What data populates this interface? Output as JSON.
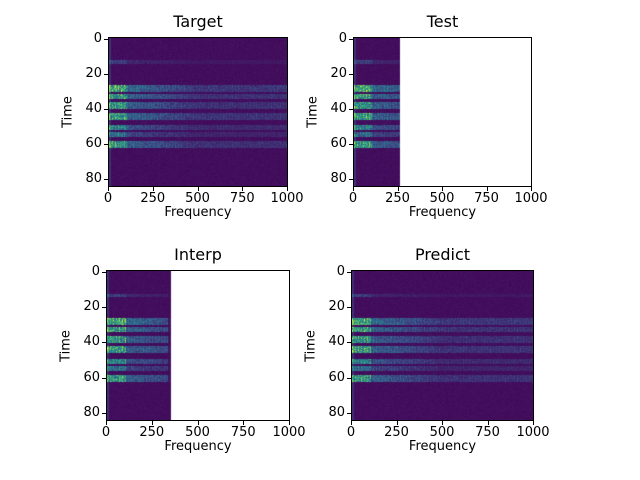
{
  "chart_data": [
    {
      "type": "heatmap",
      "title": "Target",
      "xlabel": "Frequency",
      "ylabel": "Time",
      "xlim": [
        0,
        1000
      ],
      "ylim": [
        84,
        0
      ],
      "xticks": [
        "0",
        "250",
        "500",
        "750",
        "1000"
      ],
      "yticks": [
        "0",
        "20",
        "40",
        "60",
        "80"
      ],
      "content_freq_max": 1000
    },
    {
      "type": "heatmap",
      "title": "Test",
      "xlabel": "Frequency",
      "ylabel": "Time",
      "xlim": [
        0,
        1000
      ],
      "ylim": [
        84,
        0
      ],
      "xticks": [
        "0",
        "250",
        "500",
        "750",
        "1000"
      ],
      "yticks": [
        "0",
        "20",
        "40",
        "60",
        "80"
      ],
      "content_freq_max": 256
    },
    {
      "type": "heatmap",
      "title": "Interp",
      "xlabel": "Frequency",
      "ylabel": "Time",
      "xlim": [
        0,
        1000
      ],
      "ylim": [
        84,
        0
      ],
      "xticks": [
        "0",
        "250",
        "500",
        "750",
        "1000"
      ],
      "yticks": [
        "0",
        "20",
        "40",
        "60",
        "80"
      ],
      "content_freq_max": 350
    },
    {
      "type": "heatmap",
      "title": "Predict",
      "xlabel": "Frequency",
      "ylabel": "Time",
      "xlim": [
        0,
        1000
      ],
      "ylim": [
        84,
        0
      ],
      "xticks": [
        "0",
        "250",
        "500",
        "750",
        "1000"
      ],
      "yticks": [
        "0",
        "20",
        "40",
        "60",
        "80"
      ],
      "content_freq_max": 1000
    }
  ],
  "colormap": "viridis"
}
